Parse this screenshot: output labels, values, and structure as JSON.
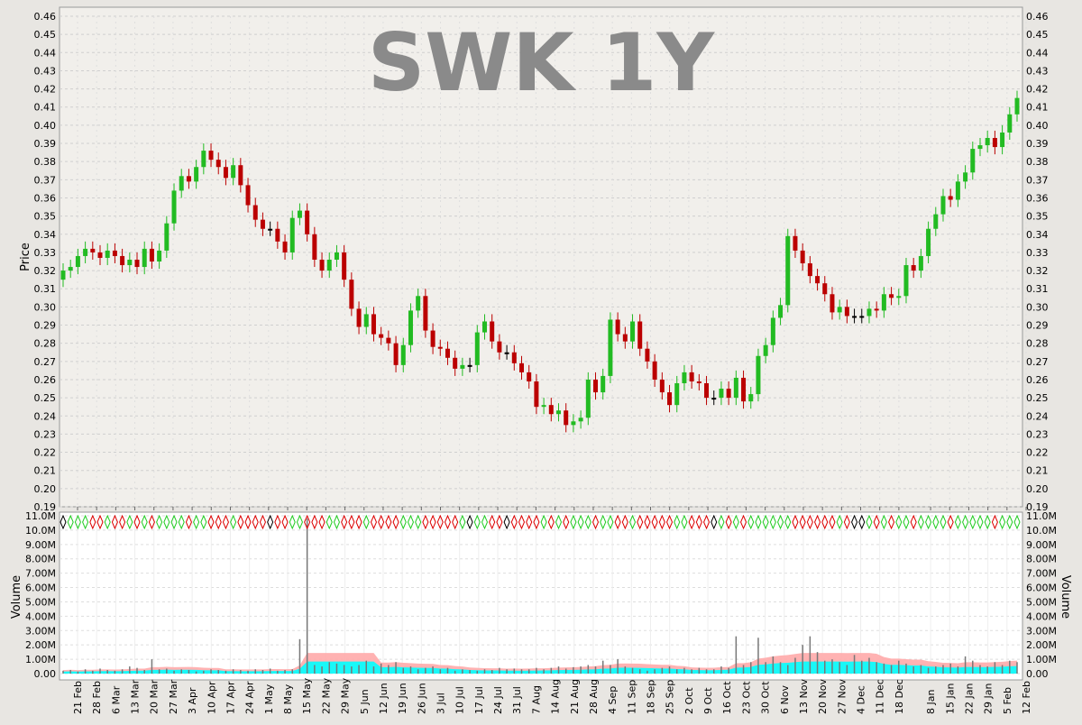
{
  "chart_data": [
    {
      "type": "candlestick",
      "title": "SWK 1Y",
      "ylabel": "Price",
      "ylim": [
        0.19,
        0.46
      ],
      "y_ticks": [
        "0.19",
        "0.20",
        "0.21",
        "0.22",
        "0.23",
        "0.24",
        "0.25",
        "0.26",
        "0.27",
        "0.28",
        "0.29",
        "0.30",
        "0.31",
        "0.32",
        "0.33",
        "0.34",
        "0.35",
        "0.36",
        "0.37",
        "0.38",
        "0.39",
        "0.40",
        "0.41",
        "0.42",
        "0.43",
        "0.44",
        "0.45",
        "0.46"
      ],
      "grid": true,
      "colors": {
        "up": "#22bb22",
        "down": "#bb0000",
        "unchanged": "#000000",
        "title": "#8a8a8a"
      },
      "series": [
        {
          "close": [
            0.32,
            0.322,
            0.328,
            0.332,
            0.33,
            0.327,
            0.331,
            0.328,
            0.323,
            0.326,
            0.322,
            0.332,
            0.325,
            0.331,
            0.346,
            0.364,
            0.372,
            0.369,
            0.377,
            0.386,
            0.381,
            0.377,
            0.371,
            0.378,
            0.367,
            0.356,
            0.348,
            0.343,
            0.343,
            0.336,
            0.33,
            0.349,
            0.353,
            0.34,
            0.326,
            0.32,
            0.326,
            0.33,
            0.315,
            0.299,
            0.289,
            0.296,
            0.285,
            0.283,
            0.28,
            0.268,
            0.279,
            0.298,
            0.306,
            0.287,
            0.278,
            0.277,
            0.272,
            0.266,
            0.268,
            0.268,
            0.286,
            0.292,
            0.281,
            0.275,
            0.275,
            0.269,
            0.264,
            0.259,
            0.245,
            0.246,
            0.241,
            0.243,
            0.235,
            0.237,
            0.239,
            0.26,
            0.253,
            0.262,
            0.293,
            0.285,
            0.281,
            0.292,
            0.277,
            0.27,
            0.26,
            0.253,
            0.246,
            0.258,
            0.264,
            0.259,
            0.258,
            0.25,
            0.25,
            0.255,
            0.25,
            0.261,
            0.248,
            0.252,
            0.273,
            0.279,
            0.294,
            0.301,
            0.339,
            0.331,
            0.324,
            0.317,
            0.313,
            0.307,
            0.297,
            0.3,
            0.295,
            0.295,
            0.295,
            0.299,
            0.298,
            0.307,
            0.305,
            0.306,
            0.323,
            0.32,
            0.328,
            0.343,
            0.351,
            0.361,
            0.359,
            0.369,
            0.374,
            0.387,
            0.389,
            0.393,
            0.388,
            0.396,
            0.406,
            0.415
          ]
        }
      ],
      "x_ticks": [
        "21 Feb",
        "28 Feb",
        "6 Mar",
        "13 Mar",
        "20 Mar",
        "27 Mar",
        "3 Apr",
        "10 Apr",
        "17 Apr",
        "24 Apr",
        "1 May",
        "8 May",
        "15 May",
        "22 May",
        "29 May",
        "5 Jun",
        "12 Jun",
        "19 Jun",
        "26 Jun",
        "3 Jul",
        "10 Jul",
        "17 Jul",
        "24 Jul",
        "31 Jul",
        "7 Aug",
        "14 Aug",
        "21 Aug",
        "28 Aug",
        "4 Sep",
        "11 Sep",
        "18 Sep",
        "25 Sep",
        "2 Oct",
        "9 Oct",
        "16 Oct",
        "23 Oct",
        "30 Oct",
        "6 Nov",
        "13 Nov",
        "20 Nov",
        "27 Nov",
        "4 Dec",
        "11 Dec",
        "18 Dec",
        "8 Jan",
        "15 Jan",
        "22 Jan",
        "29 Jan",
        "5 Feb",
        "12 Feb"
      ]
    },
    {
      "type": "bar",
      "ylabel": "Volume",
      "ylim": [
        0,
        11000000
      ],
      "y_ticks": [
        "0.00",
        "1.00M",
        "2.00M",
        "3.00M",
        "4.00M",
        "5.00M",
        "6.00M",
        "7.00M",
        "8.00M",
        "9.00M",
        "10.0M",
        "11.0M"
      ],
      "colors": {
        "volume_bar": "#777777",
        "cyan_area": "#00ffff",
        "pink_area": "#ffaaaa"
      },
      "series": [
        {
          "name": "volume_bars",
          "values": [
            0.2,
            0.25,
            0.15,
            0.3,
            0.2,
            0.35,
            0.25,
            0.2,
            0.3,
            0.5,
            0.4,
            0.25,
            1.0,
            0.3,
            0.35,
            0.2,
            0.3,
            0.25,
            0.15,
            0.2,
            0.3,
            0.25,
            0.2,
            0.3,
            0.25,
            0.2,
            0.3,
            0.25,
            0.35,
            0.2,
            0.25,
            0.3,
            2.4,
            10.8,
            0.6,
            0.5,
            0.8,
            0.7,
            0.6,
            0.5,
            0.6,
            0.9,
            0.5,
            0.7,
            0.6,
            0.8,
            0.4,
            0.5,
            0.3,
            0.4,
            0.5,
            0.3,
            0.4,
            0.2,
            0.3,
            0.25,
            0.2,
            0.3,
            0.25,
            0.4,
            0.3,
            0.35,
            0.3,
            0.3,
            0.4,
            0.3,
            0.4,
            0.5,
            0.35,
            0.45,
            0.5,
            0.6,
            0.5,
            0.9,
            0.6,
            1.0,
            0.5,
            0.4,
            0.3,
            0.2,
            0.3,
            0.4,
            0.5,
            0.3,
            0.4,
            0.3,
            0.4,
            0.3,
            0.3,
            0.5,
            0.4,
            2.6,
            0.6,
            0.8,
            2.5,
            0.8,
            1.2,
            0.8,
            0.6,
            1.1,
            2.0,
            2.6,
            1.5,
            0.9,
            1.0,
            0.8,
            0.6,
            1.3,
            0.9,
            1.1,
            0.8,
            0.7,
            0.6,
            0.9,
            0.7,
            0.5,
            0.6,
            0.4,
            0.5,
            0.6,
            0.7,
            0.5,
            1.2,
            0.9,
            0.6,
            0.5,
            0.8,
            0.6,
            0.9,
            0.8
          ]
        }
      ]
    }
  ]
}
